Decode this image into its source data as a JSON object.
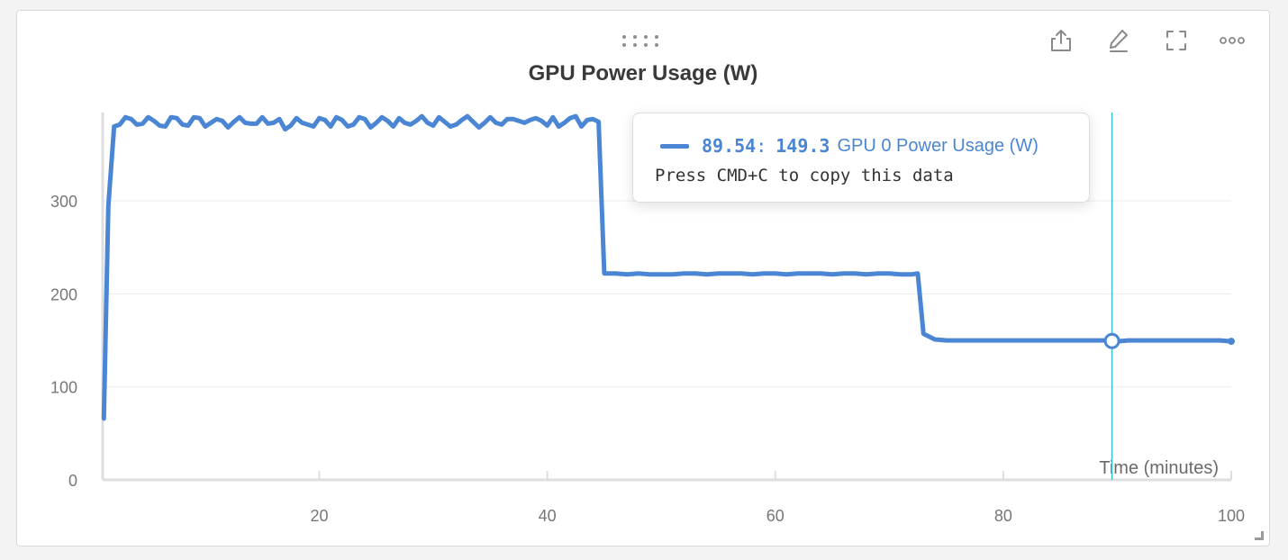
{
  "panel": {
    "title": "GPU Power Usage (W)",
    "toolbar": [
      {
        "name": "export-icon"
      },
      {
        "name": "edit-icon"
      },
      {
        "name": "fullscreen-icon"
      },
      {
        "name": "more-options-icon"
      }
    ]
  },
  "tooltip": {
    "x_value": "89.54",
    "separator": ":",
    "y_value": "149.3",
    "series_name": "GPU 0 Power Usage (W)",
    "hint": "Press CMD+C to copy this data"
  },
  "chart_data": {
    "type": "line",
    "title": "GPU Power Usage (W)",
    "xlabel": "Time (minutes)",
    "ylabel": "",
    "xlim": [
      1,
      100
    ],
    "ylim": [
      0,
      395
    ],
    "xticks": [
      20,
      40,
      60,
      80,
      100
    ],
    "yticks": [
      0,
      100,
      200,
      300
    ],
    "grid": "horizontal",
    "legend": "none",
    "color": "#4a86d3",
    "hover_x": 89.54,
    "hover_y": 149.3,
    "series": [
      {
        "name": "GPU 0 Power Usage (W)",
        "x": [
          1.1,
          1.5,
          2,
          2.5,
          3,
          3.5,
          4,
          4.5,
          5,
          5.5,
          6,
          6.5,
          7,
          7.5,
          8,
          8.5,
          9,
          9.5,
          10,
          10.5,
          11,
          11.5,
          12,
          12.5,
          13,
          13.5,
          14,
          14.5,
          15,
          15.5,
          16,
          16.5,
          17,
          17.5,
          18,
          18.5,
          19,
          19.5,
          20,
          20.5,
          21,
          21.5,
          22,
          22.5,
          23,
          23.5,
          24,
          24.5,
          25,
          25.5,
          26,
          26.5,
          27,
          27.5,
          28,
          28.5,
          29,
          29.5,
          30,
          30.5,
          31,
          31.5,
          32,
          32.5,
          33,
          33.5,
          34,
          34.5,
          35,
          35.5,
          36,
          36.5,
          37,
          37.5,
          38,
          38.5,
          39,
          39.5,
          40,
          40.5,
          41,
          41.5,
          42,
          42.5,
          43,
          43.5,
          44,
          44.5,
          45,
          46,
          47,
          48,
          49,
          50,
          51,
          52,
          53,
          54,
          55,
          56,
          57,
          58,
          59,
          60,
          61,
          62,
          63,
          64,
          65,
          66,
          67,
          68,
          69,
          70,
          71,
          71.5,
          72,
          72.5,
          73,
          74,
          75,
          76,
          77,
          78,
          79,
          80,
          81,
          82,
          83,
          84,
          85,
          86,
          87,
          88,
          89,
          90,
          91,
          92,
          93,
          94,
          95,
          96,
          97,
          98,
          99,
          100
        ],
        "y": [
          66,
          295,
          380,
          382,
          390,
          388,
          382,
          383,
          390,
          386,
          381,
          380,
          390,
          389,
          382,
          381,
          390,
          389,
          380,
          384,
          388,
          386,
          379,
          385,
          390,
          384,
          383,
          383,
          390,
          383,
          384,
          388,
          377,
          381,
          389,
          384,
          382,
          380,
          389,
          387,
          380,
          390,
          387,
          380,
          382,
          390,
          388,
          379,
          384,
          390,
          386,
          380,
          389,
          384,
          382,
          386,
          391,
          384,
          381,
          390,
          385,
          380,
          382,
          387,
          391,
          385,
          379,
          384,
          390,
          384,
          382,
          388,
          388,
          386,
          384,
          387,
          389,
          386,
          381,
          390,
          380,
          384,
          389,
          391,
          380,
          387,
          388,
          385,
          222,
          222,
          221,
          222,
          221,
          221,
          221,
          222,
          222,
          221,
          222,
          222,
          222,
          221,
          222,
          222,
          221,
          222,
          222,
          222,
          221,
          222,
          222,
          221,
          222,
          222,
          221,
          221,
          221,
          222,
          157,
          151,
          150,
          150,
          150,
          150,
          150,
          150,
          150,
          150,
          150,
          150,
          150,
          150,
          150,
          150,
          150,
          149,
          150,
          150,
          150,
          150,
          150,
          150,
          150,
          150,
          150,
          149
        ]
      }
    ]
  }
}
